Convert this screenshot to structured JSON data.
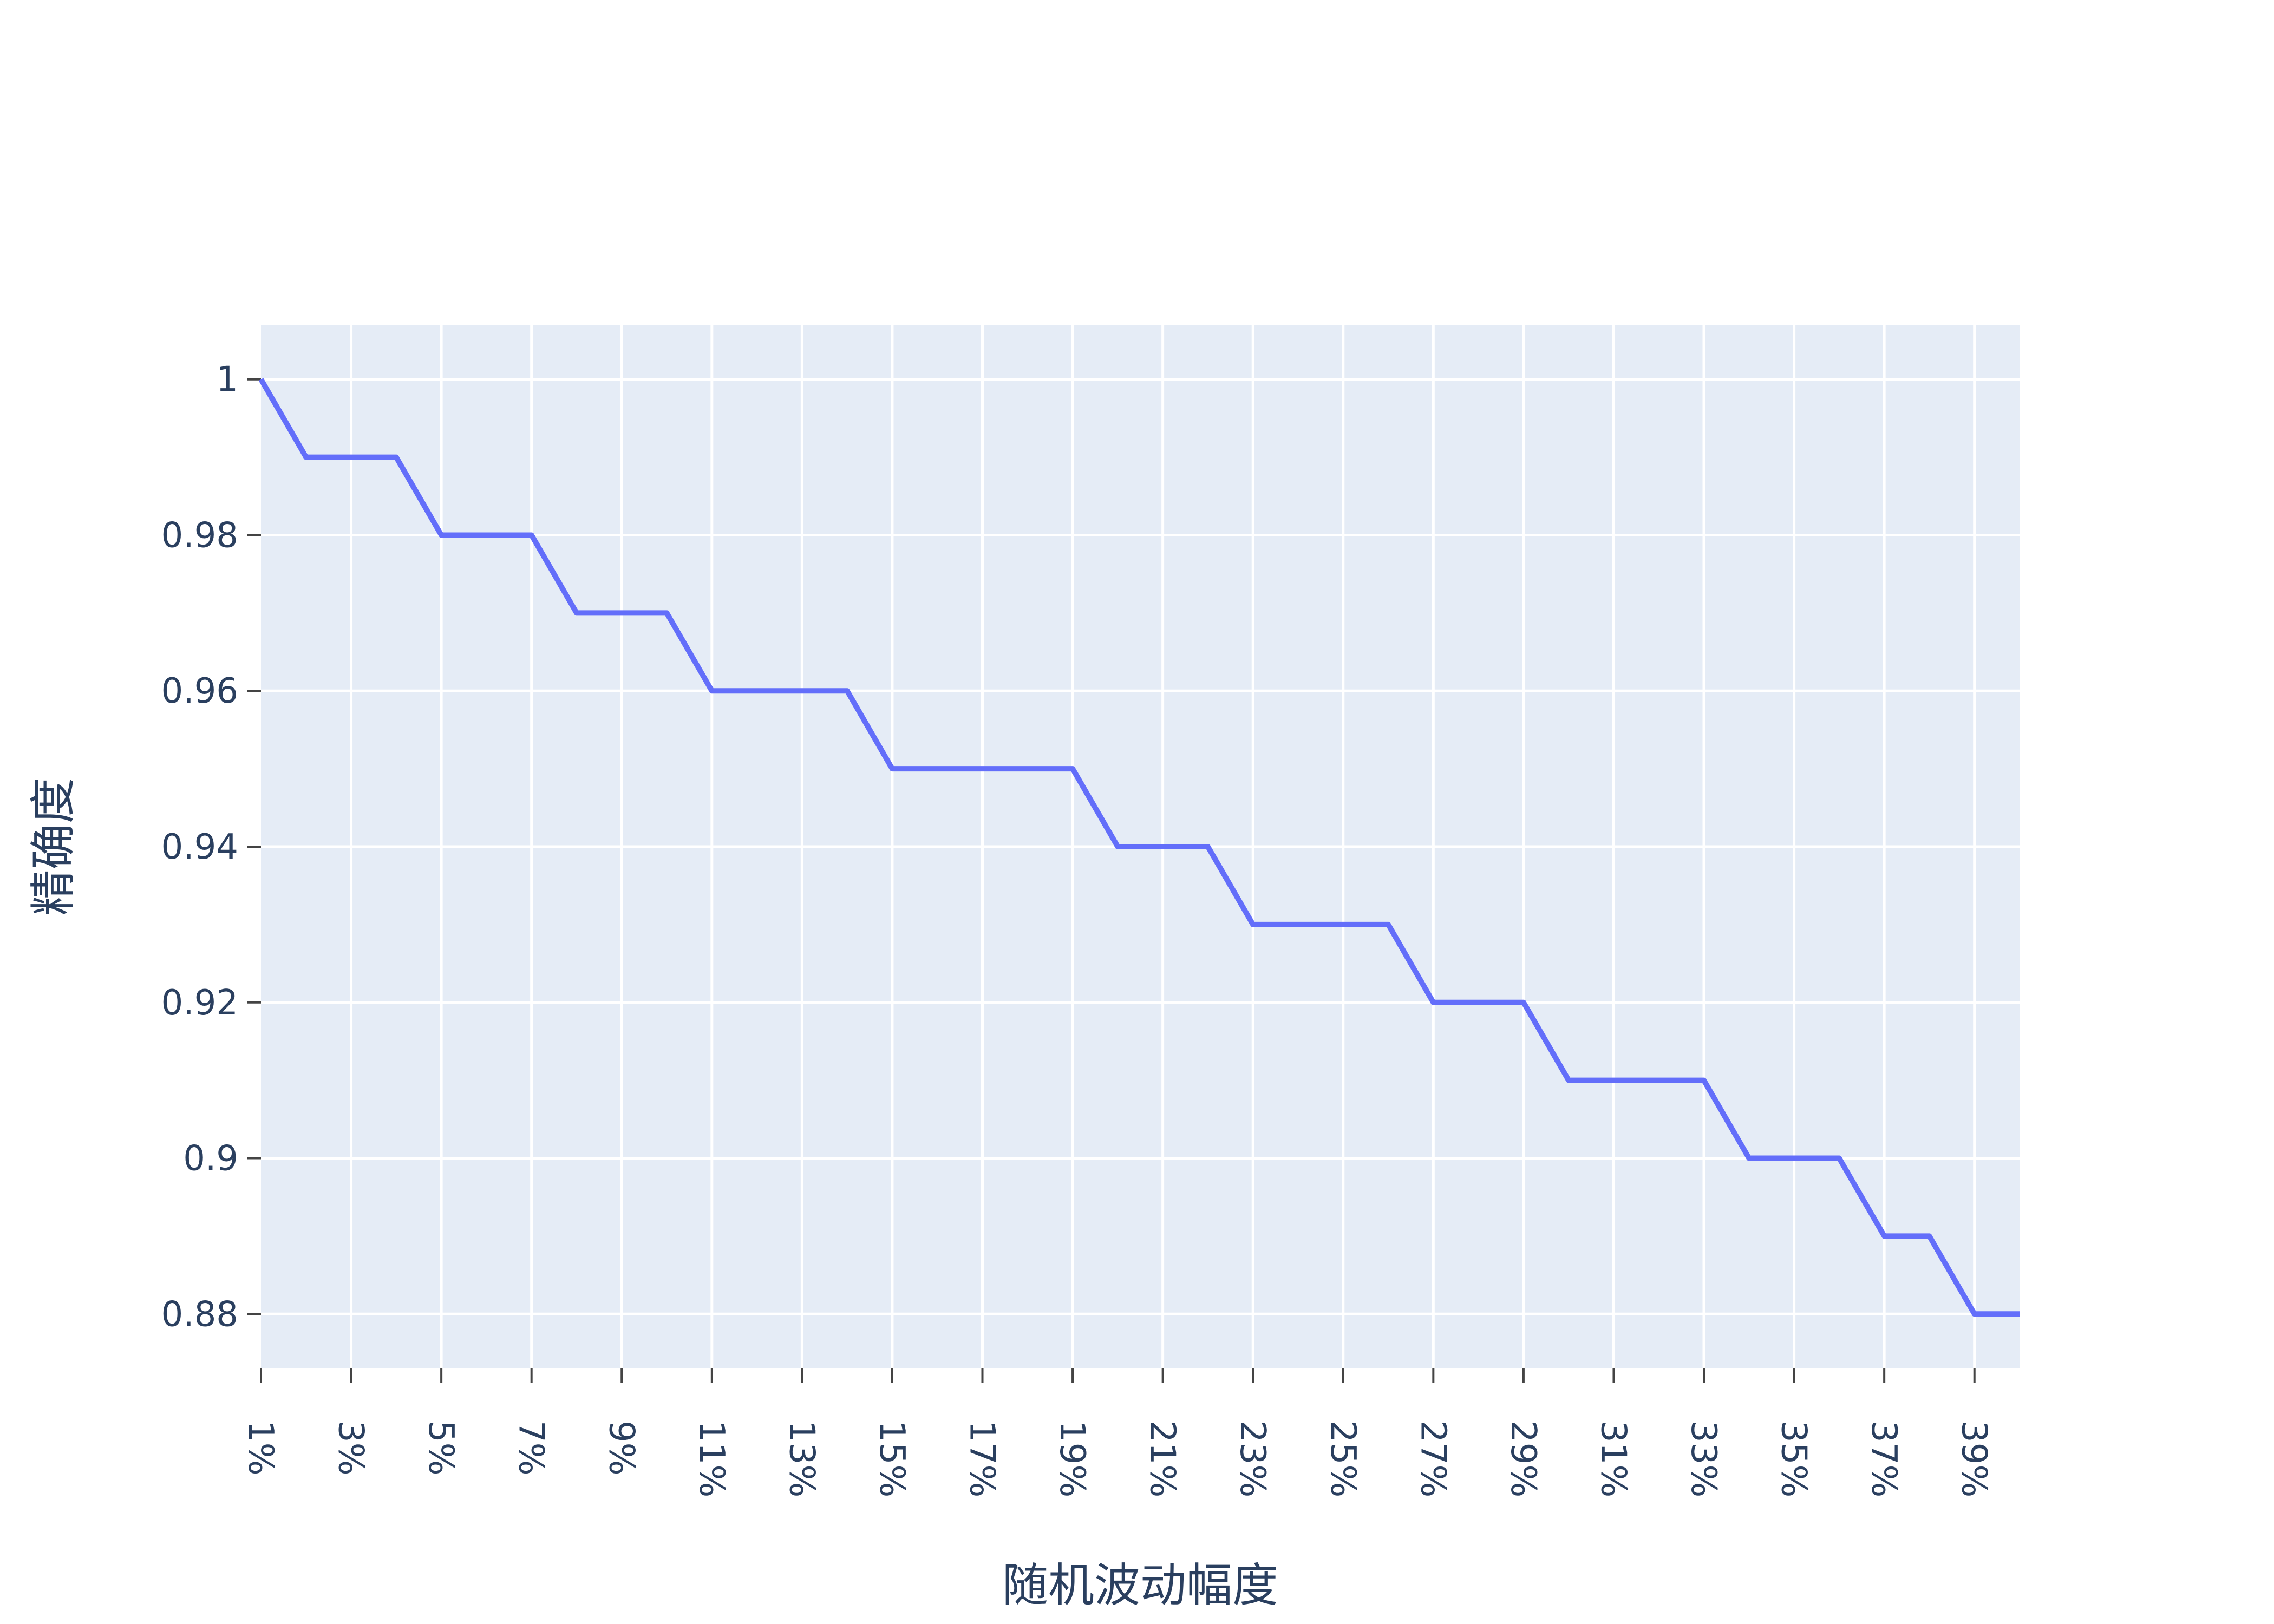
{
  "chart_data": {
    "type": "line",
    "title": "",
    "xlabel": "随机波动幅度",
    "ylabel": "精确度",
    "x": [
      "1%",
      "2%",
      "3%",
      "4%",
      "5%",
      "6%",
      "7%",
      "8%",
      "9%",
      "10%",
      "11%",
      "12%",
      "13%",
      "14%",
      "15%",
      "16%",
      "17%",
      "18%",
      "19%",
      "20%",
      "21%",
      "22%",
      "23%",
      "24%",
      "25%",
      "26%",
      "27%",
      "28%",
      "29%",
      "30%",
      "31%",
      "32%",
      "33%",
      "34%",
      "35%",
      "36%",
      "37%",
      "38%",
      "39%",
      "40%"
    ],
    "x_tick_labels": [
      "1%",
      "3%",
      "5%",
      "7%",
      "9%",
      "11%",
      "13%",
      "15%",
      "17%",
      "19%",
      "21%",
      "23%",
      "25%",
      "27%",
      "29%",
      "31%",
      "33%",
      "35%",
      "37%",
      "39%"
    ],
    "series": [
      {
        "values": [
          1.0,
          0.99,
          0.99,
          0.99,
          0.98,
          0.98,
          0.98,
          0.97,
          0.97,
          0.97,
          0.96,
          0.96,
          0.96,
          0.96,
          0.95,
          0.95,
          0.95,
          0.95,
          0.95,
          0.94,
          0.94,
          0.94,
          0.93,
          0.93,
          0.93,
          0.93,
          0.92,
          0.92,
          0.92,
          0.91,
          0.91,
          0.91,
          0.91,
          0.9,
          0.9,
          0.9,
          0.89,
          0.89,
          0.88,
          0.88
        ],
        "color": "#636efa"
      }
    ],
    "y_ticks": [
      0.88,
      0.9,
      0.92,
      0.94,
      0.96,
      0.98,
      1.0
    ],
    "y_tick_labels": [
      "0.88",
      "0.9",
      "0.92",
      "0.94",
      "0.96",
      "0.98",
      "1"
    ],
    "ylim": [
      0.873,
      1.007
    ],
    "grid": true,
    "colors": {
      "plot_bg": "#e5ecf6",
      "grid": "#ffffff",
      "text": "#2a3f5f",
      "line": "#636efa"
    }
  }
}
